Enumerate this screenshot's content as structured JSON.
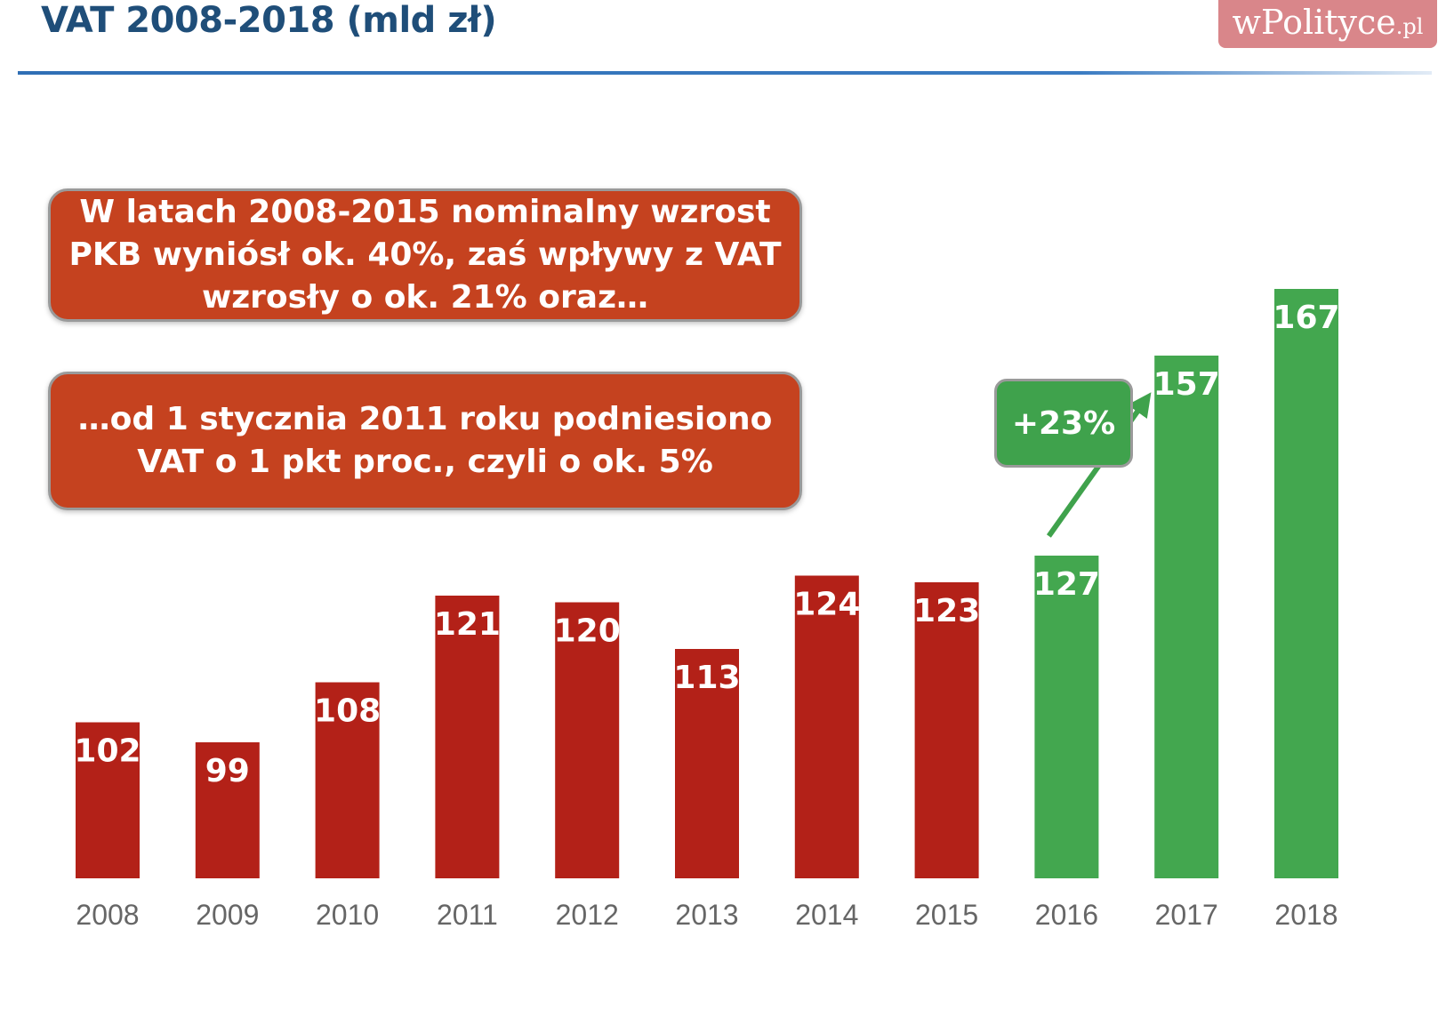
{
  "header": {
    "title": "VAT 2008-2018 (mld zł)"
  },
  "brand": {
    "name": "wPolityce",
    "tld": ".pl"
  },
  "callouts": {
    "first": "W latach 2008-2015 nominalny wzrost PKB wyniósł ok. 40%, zaś wpływy z VAT wzrosły o ok. 21% oraz…",
    "second": "…od 1 stycznia 2011 roku podniesiono VAT o 1 pkt proc., czyli o ok. 5%",
    "growth": "+23%"
  },
  "chart_data": {
    "type": "bar",
    "title": "VAT 2008-2018 (mld zł)",
    "categories": [
      "2008",
      "2009",
      "2010",
      "2011",
      "2012",
      "2013",
      "2014",
      "2015",
      "2016",
      "2017",
      "2018"
    ],
    "values": [
      102,
      99,
      108,
      121,
      120,
      113,
      124,
      123,
      127,
      157,
      167
    ],
    "data_labels": [
      "102",
      "99",
      "108",
      "121",
      "120",
      "113",
      "124",
      "123",
      "127",
      "157",
      "167"
    ],
    "colors": [
      "#b32118",
      "#b32118",
      "#b32118",
      "#b32118",
      "#b32118",
      "#b32118",
      "#b32118",
      "#b32118",
      "#43a74f",
      "#43a74f",
      "#43a74f"
    ],
    "annotation": "+23%",
    "grid": false
  }
}
